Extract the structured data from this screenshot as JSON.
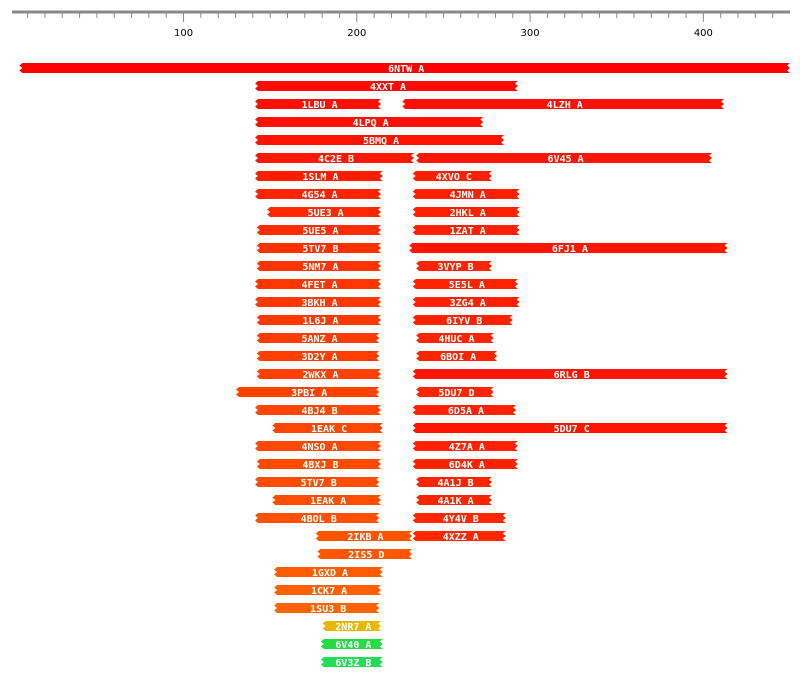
{
  "chart_data": {
    "type": "range",
    "xlim": [
      1,
      450
    ],
    "xticks": [
      100,
      200,
      300,
      400
    ],
    "minor_xticks": [
      10,
      20,
      30,
      40,
      50,
      60,
      70,
      80,
      90,
      110,
      120,
      130,
      140,
      150,
      160,
      170,
      180,
      190,
      210,
      220,
      230,
      240,
      250,
      260,
      270,
      280,
      290,
      310,
      320,
      330,
      340,
      350,
      360,
      370,
      380,
      390,
      410,
      420,
      430,
      440
    ],
    "rows": [
      [
        {
          "label": "6NTW_A",
          "start": 7,
          "end": 450,
          "color": "#ff0000"
        }
      ],
      [
        {
          "label": "4XXT_A",
          "start": 143,
          "end": 293,
          "color": "#ff0a00"
        }
      ],
      [
        {
          "label": "1LBU_A",
          "start": 143,
          "end": 214,
          "color": "#ff0f00"
        },
        {
          "label": "4LZH_A",
          "start": 228,
          "end": 412,
          "color": "#ff1000"
        }
      ],
      [
        {
          "label": "4LPQ_A",
          "start": 143,
          "end": 273,
          "color": "#ff1000"
        }
      ],
      [
        {
          "label": "5BMQ_A",
          "start": 143,
          "end": 285,
          "color": "#ff1200"
        }
      ],
      [
        {
          "label": "4C2E_B",
          "start": 143,
          "end": 233,
          "color": "#ff1800"
        },
        {
          "label": "6V45_A",
          "start": 236,
          "end": 405,
          "color": "#ff1500"
        }
      ],
      [
        {
          "label": "1SLM_A",
          "start": 143,
          "end": 215,
          "color": "#ff1e00"
        },
        {
          "label": "4XVO_C",
          "start": 234,
          "end": 278,
          "color": "#ff2000"
        }
      ],
      [
        {
          "label": "4G54_A",
          "start": 143,
          "end": 214,
          "color": "#ff2400"
        },
        {
          "label": "4JMN_A",
          "start": 234,
          "end": 294,
          "color": "#ff2000"
        }
      ],
      [
        {
          "label": "5UE3_A",
          "start": 150,
          "end": 214,
          "color": "#ff2800"
        },
        {
          "label": "2HKL_A",
          "start": 234,
          "end": 294,
          "color": "#ff2000"
        }
      ],
      [
        {
          "label": "5UE5_A",
          "start": 144,
          "end": 214,
          "color": "#ff2c00"
        },
        {
          "label": "1ZAT_A",
          "start": 234,
          "end": 294,
          "color": "#ff2000"
        }
      ],
      [
        {
          "label": "5TV7_B",
          "start": 144,
          "end": 214,
          "color": "#ff3000"
        },
        {
          "label": "6FJ1_A",
          "start": 232,
          "end": 414,
          "color": "#ff1500"
        }
      ],
      [
        {
          "label": "5NM7_A",
          "start": 144,
          "end": 214,
          "color": "#ff3400"
        },
        {
          "label": "3VYP_B",
          "start": 236,
          "end": 278,
          "color": "#ff2400"
        }
      ],
      [
        {
          "label": "4FET_A",
          "start": 143,
          "end": 214,
          "color": "#ff3600"
        },
        {
          "label": "5E5L_A",
          "start": 234,
          "end": 293,
          "color": "#ff2200"
        }
      ],
      [
        {
          "label": "3BKH_A",
          "start": 143,
          "end": 214,
          "color": "#ff3800"
        },
        {
          "label": "3ZG4_A",
          "start": 234,
          "end": 294,
          "color": "#ff2200"
        }
      ],
      [
        {
          "label": "1L6J_A",
          "start": 144,
          "end": 214,
          "color": "#ff3a00"
        },
        {
          "label": "6IYV_B",
          "start": 234,
          "end": 290,
          "color": "#ff2200"
        }
      ],
      [
        {
          "label": "5ANZ_A",
          "start": 144,
          "end": 213,
          "color": "#ff3c00"
        },
        {
          "label": "4HUC_A",
          "start": 236,
          "end": 279,
          "color": "#ff2400"
        }
      ],
      [
        {
          "label": "3D2Y_A",
          "start": 144,
          "end": 213,
          "color": "#ff3e00"
        },
        {
          "label": "6BOI_A",
          "start": 236,
          "end": 281,
          "color": "#ff2400"
        }
      ],
      [
        {
          "label": "2WKX_A",
          "start": 144,
          "end": 214,
          "color": "#ff4000"
        },
        {
          "label": "6RLG_B",
          "start": 234,
          "end": 414,
          "color": "#ff1500"
        }
      ],
      [
        {
          "label": "3PBI_A",
          "start": 132,
          "end": 213,
          "color": "#ff4200"
        },
        {
          "label": "5DU7_D",
          "start": 236,
          "end": 279,
          "color": "#ff2400"
        }
      ],
      [
        {
          "label": "4BJ4_B",
          "start": 143,
          "end": 214,
          "color": "#ff4400"
        },
        {
          "label": "6D5A_A",
          "start": 234,
          "end": 292,
          "color": "#ff2200"
        }
      ],
      [
        {
          "label": "1EAK_C",
          "start": 153,
          "end": 215,
          "color": "#ff4600"
        },
        {
          "label": "5DU7_C",
          "start": 234,
          "end": 414,
          "color": "#ff1500"
        }
      ],
      [
        {
          "label": "4NSO_A",
          "start": 143,
          "end": 214,
          "color": "#ff4800"
        },
        {
          "label": "4Z7A_A",
          "start": 234,
          "end": 293,
          "color": "#ff2200"
        }
      ],
      [
        {
          "label": "4BXJ_B",
          "start": 144,
          "end": 214,
          "color": "#ff4a00"
        },
        {
          "label": "6D4K_A",
          "start": 234,
          "end": 293,
          "color": "#ff2200"
        }
      ],
      [
        {
          "label": "5TV7_B",
          "start": 143,
          "end": 213,
          "color": "#ff4c00"
        },
        {
          "label": "4A1J_B",
          "start": 236,
          "end": 278,
          "color": "#ff2400"
        }
      ],
      [
        {
          "label": "1EAK_A",
          "start": 153,
          "end": 214,
          "color": "#ff4e00"
        },
        {
          "label": "4A1K_A",
          "start": 236,
          "end": 278,
          "color": "#ff2400"
        }
      ],
      [
        {
          "label": "4BOL_B",
          "start": 143,
          "end": 213,
          "color": "#ff5000"
        },
        {
          "label": "4Y4V_B",
          "start": 234,
          "end": 286,
          "color": "#ff2600"
        }
      ],
      [
        {
          "label": "2IKB_A",
          "start": 178,
          "end": 232,
          "color": "#ff5400"
        },
        {
          "label": "4XZZ_A",
          "start": 234,
          "end": 286,
          "color": "#ff2600"
        }
      ],
      [
        {
          "label": "2IS5_D",
          "start": 179,
          "end": 232,
          "color": "#ff5600"
        }
      ],
      [
        {
          "label": "1GXD_A",
          "start": 154,
          "end": 215,
          "color": "#ff5c00"
        }
      ],
      [
        {
          "label": "1CK7_A",
          "start": 154,
          "end": 214,
          "color": "#ff6000"
        }
      ],
      [
        {
          "label": "1SU3_B",
          "start": 154,
          "end": 213,
          "color": "#ff6400"
        }
      ],
      [
        {
          "label": "2NR7_A",
          "start": 182,
          "end": 214,
          "color": "#e8b800"
        }
      ],
      [
        {
          "label": "6V40_A",
          "start": 181,
          "end": 215,
          "color": "#22dd44"
        }
      ],
      [
        {
          "label": "6V3Z_B",
          "start": 181,
          "end": 215,
          "color": "#22dd55"
        }
      ]
    ]
  }
}
